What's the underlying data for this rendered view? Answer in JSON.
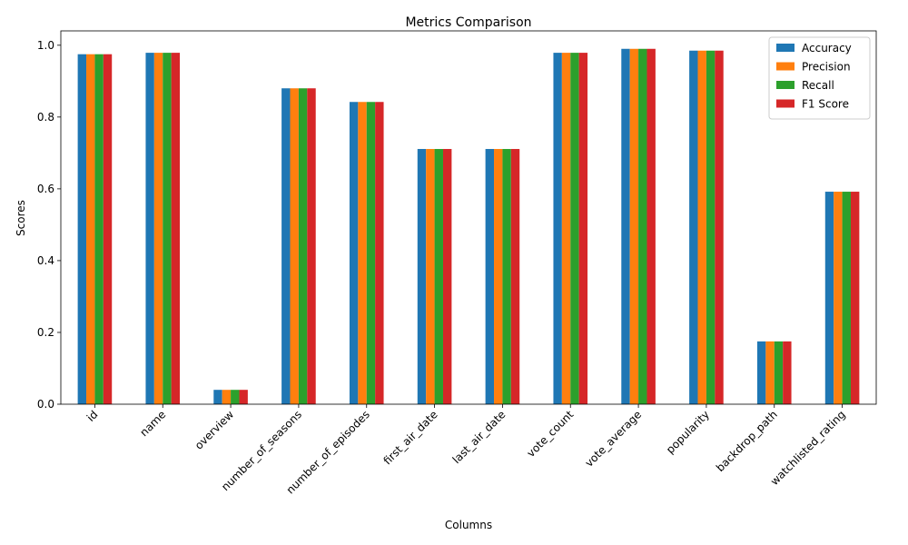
{
  "chart_data": {
    "type": "bar",
    "title": "Metrics Comparison",
    "xlabel": "Columns",
    "ylabel": "Scores",
    "ylim": [
      0,
      1.04
    ],
    "yticks": [
      0.0,
      0.2,
      0.4,
      0.6,
      0.8,
      1.0
    ],
    "ytick_labels": [
      "0.0",
      "0.2",
      "0.4",
      "0.6",
      "0.8",
      "1.0"
    ],
    "grid": false,
    "legend_position": "top-right",
    "categories": [
      "id",
      "name",
      "overview",
      "number_of_seasons",
      "number_of_episodes",
      "first_air_date",
      "last_air_date",
      "vote_count",
      "vote_average",
      "popularity",
      "backdrop_path",
      "watchlisted_rating"
    ],
    "series": [
      {
        "name": "Accuracy",
        "color": "#1f77b4",
        "values": [
          0.975,
          0.979,
          0.04,
          0.88,
          0.842,
          0.711,
          0.711,
          0.979,
          0.99,
          0.985,
          0.175,
          0.592
        ]
      },
      {
        "name": "Precision",
        "color": "#ff7f0e",
        "values": [
          0.975,
          0.979,
          0.04,
          0.88,
          0.842,
          0.711,
          0.711,
          0.979,
          0.99,
          0.985,
          0.175,
          0.592
        ]
      },
      {
        "name": "Recall",
        "color": "#2ca02c",
        "values": [
          0.975,
          0.979,
          0.04,
          0.88,
          0.842,
          0.711,
          0.711,
          0.979,
          0.99,
          0.985,
          0.175,
          0.592
        ]
      },
      {
        "name": "F1 Score",
        "color": "#d62728",
        "values": [
          0.975,
          0.979,
          0.04,
          0.88,
          0.842,
          0.711,
          0.711,
          0.979,
          0.99,
          0.985,
          0.175,
          0.592
        ]
      }
    ]
  }
}
